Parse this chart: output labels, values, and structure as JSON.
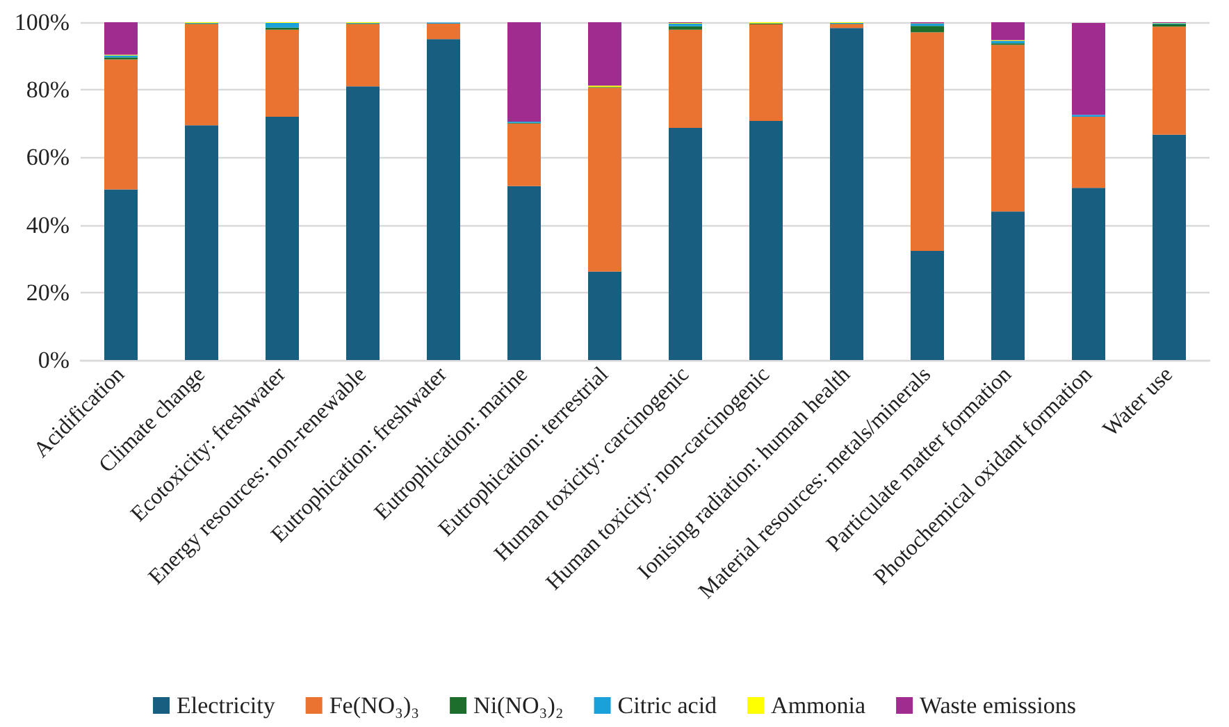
{
  "chart_data": {
    "type": "bar",
    "stacked": true,
    "grid": "y",
    "legend": "bottom",
    "categories": [
      "Acidification",
      "Climate change",
      "Ecotoxicity: freshwater",
      "Energy resources: non-renewable",
      "Eutrophication: freshwater",
      "Eutrophication: marine",
      "Eutrophication: terrestrial",
      "Human toxicity: carcinogenic",
      "Human toxicity: non-carcinogenic",
      "Ionising radiation: human health",
      "Material resources: metals/minerals",
      "Particulate matter formation",
      "Photochemical oxidant formation",
      "Water use"
    ],
    "ylim": [
      0,
      100
    ],
    "yticks": [
      {
        "value": 0,
        "label": "0%"
      },
      {
        "value": 20,
        "label": "20%"
      },
      {
        "value": 40,
        "label": "40%"
      },
      {
        "value": 60,
        "label": "60%"
      },
      {
        "value": 80,
        "label": "80%"
      },
      {
        "value": 100,
        "label": "100%"
      }
    ],
    "series": [
      {
        "name": "Electricity",
        "color": "#175e80",
        "values": [
          50.5,
          69.5,
          72,
          81,
          95,
          51.5,
          26.2,
          68.7,
          70.8,
          98.3,
          32.3,
          44,
          51,
          66.7
        ]
      },
      {
        "name": "Fe(NO₃)₃",
        "color": "#eb7331",
        "values": [
          38.5,
          30,
          25.8,
          18.5,
          4.6,
          18.5,
          54.4,
          29.1,
          28.6,
          1.2,
          64.7,
          49.3,
          21,
          32
        ]
      },
      {
        "name": "Ni(NO₃)₂",
        "color": "#1d6e2c",
        "values": [
          0.6,
          0.2,
          0.6,
          0.2,
          null,
          0.2,
          0.2,
          1,
          0.2,
          0.1,
          1.9,
          0.5,
          null,
          0.7
        ]
      },
      {
        "name": "Citric acid",
        "color": "#1ba1d9",
        "values": [
          0.6,
          0.1,
          1.4,
          0.1,
          0.3,
          0.4,
          0,
          0.8,
          0.1,
          0.2,
          0.7,
          0.7,
          0.6,
          0.3
        ]
      },
      {
        "name": "Ammonia",
        "color": "#ffff00",
        "values": [
          0.2,
          0.2,
          0.2,
          0.2,
          0,
          0,
          0.4,
          0.2,
          0.3,
          0.2,
          0.1,
          0.2,
          null,
          0.1
        ]
      },
      {
        "name": "Waste emissions",
        "color": "#a02c90",
        "values": [
          9.6,
          0,
          0,
          0,
          0,
          29.4,
          18.8,
          0.2,
          0,
          0,
          0.3,
          5.3,
          27.2,
          0.2
        ]
      }
    ]
  }
}
